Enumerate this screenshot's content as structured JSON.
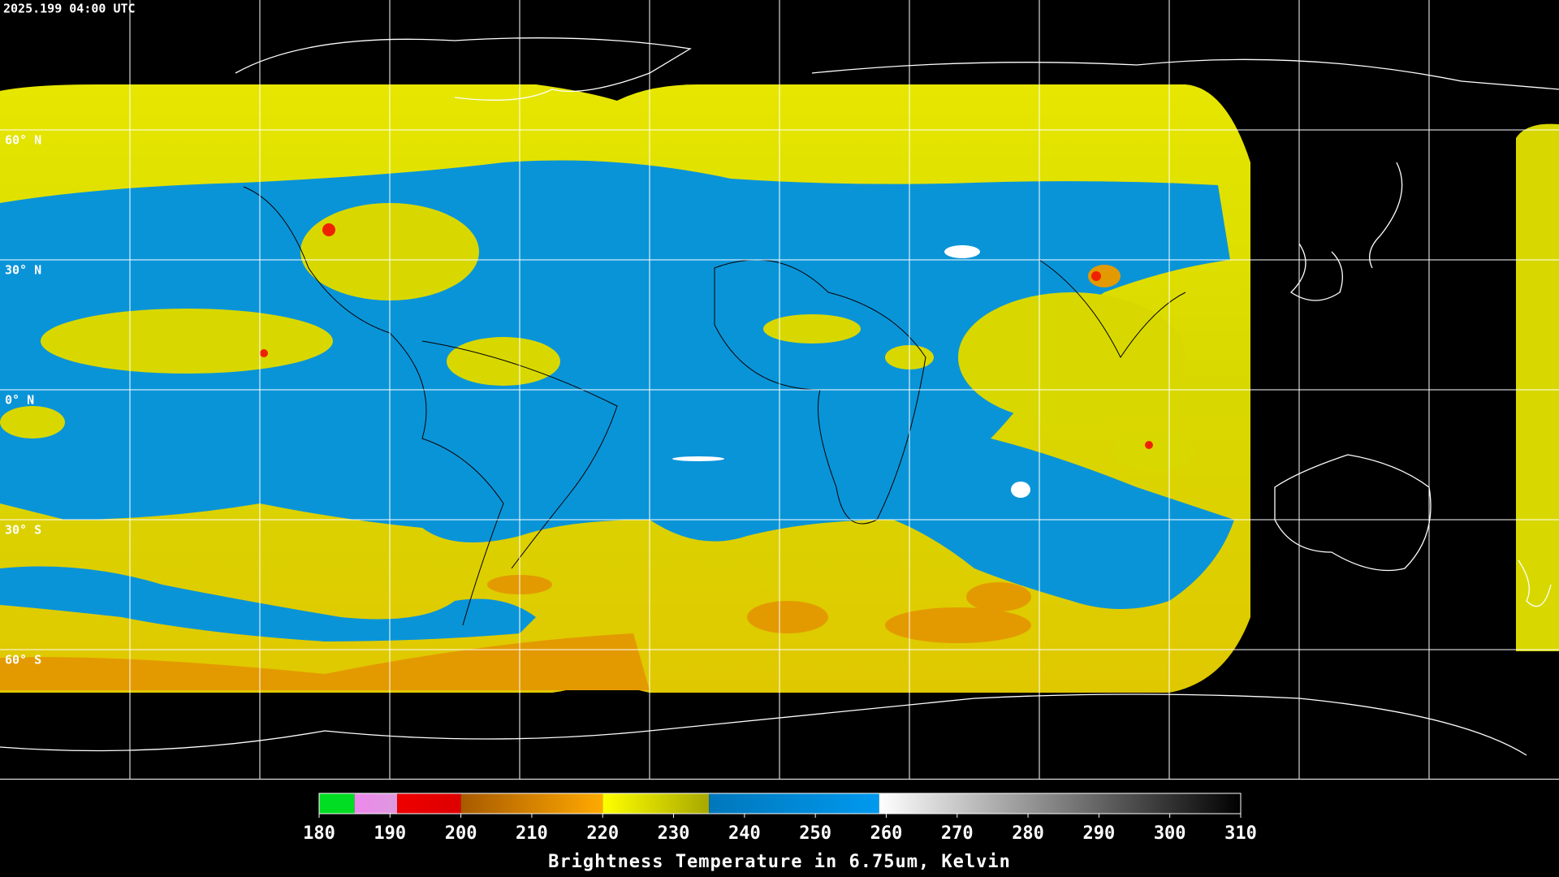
{
  "header": {
    "timestamp": "2025.199 04:00 UTC"
  },
  "map": {
    "lat_labels": [
      "60° N",
      "30° N",
      "0° N",
      "30° S",
      "60° S"
    ]
  },
  "colorbar": {
    "range": [
      180,
      310
    ],
    "ticks": [
      180,
      190,
      200,
      210,
      220,
      230,
      240,
      250,
      260,
      270,
      280,
      290,
      300,
      310
    ],
    "segments": [
      {
        "from": 180,
        "to": 185,
        "colors": [
          "#00dd22",
          "#00dd22"
        ]
      },
      {
        "from": 185,
        "to": 191,
        "colors": [
          "#ee88ee",
          "#dd99dd"
        ]
      },
      {
        "from": 191,
        "to": 200,
        "colors": [
          "#ee0000",
          "#dd0000"
        ]
      },
      {
        "from": 200,
        "to": 220,
        "colors": [
          "#a85a00",
          "#ffaa00"
        ]
      },
      {
        "from": 220,
        "to": 235,
        "colors": [
          "#ffff00",
          "#a8a800"
        ]
      },
      {
        "from": 235,
        "to": 259,
        "colors": [
          "#0077bb",
          "#0099ee"
        ]
      },
      {
        "from": 259,
        "to": 310,
        "colors": [
          "#ffffff",
          "#000000"
        ]
      }
    ],
    "title": "Brightness Temperature in 6.75um, Kelvin"
  }
}
